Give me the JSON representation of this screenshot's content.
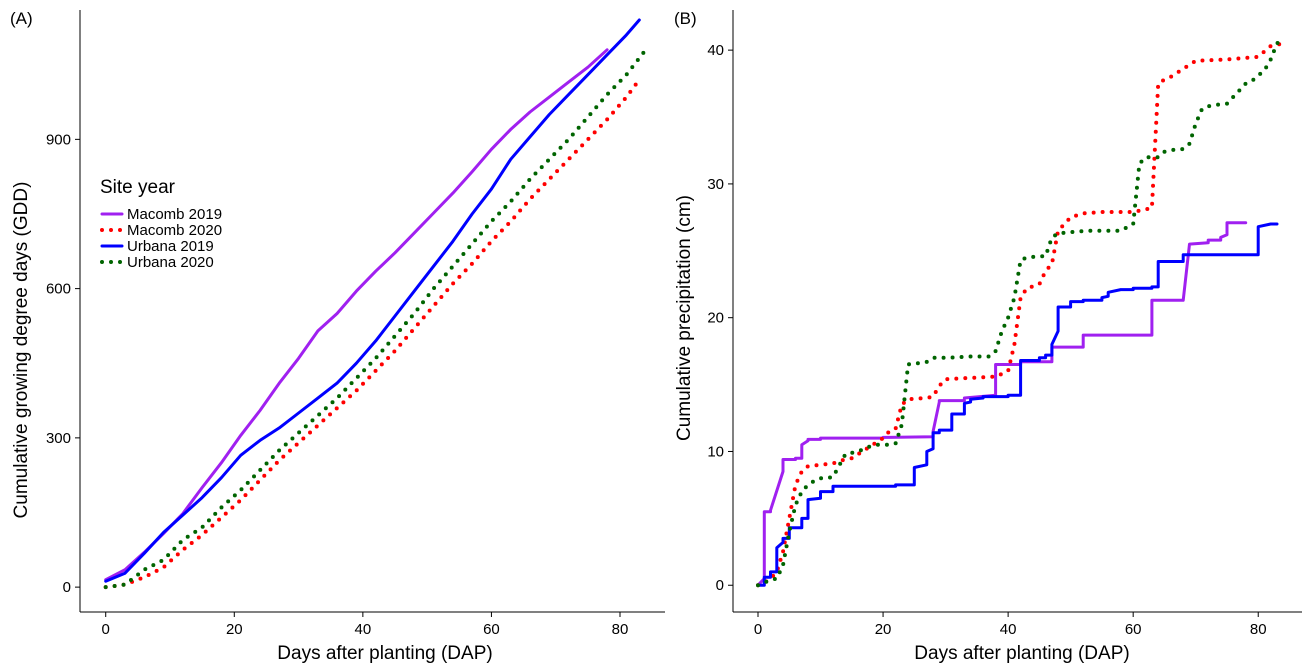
{
  "chart_data": [
    {
      "type": "line",
      "panel_label": "(A)",
      "xlabel": "Days after planting (DAP)",
      "ylabel": "Cumulative growing degree days (GDD)",
      "xlim": [
        -4,
        87
      ],
      "ylim": [
        -50,
        1160
      ],
      "xticks": [
        0,
        20,
        40,
        60,
        80
      ],
      "yticks": [
        0,
        300,
        600,
        900
      ],
      "grid": false,
      "legend": {
        "title": "Site year",
        "position": "top-left",
        "entries": [
          "Macomb 2019",
          "Macomb 2020",
          "Urbana 2019",
          "Urbana 2020"
        ]
      },
      "series": [
        {
          "name": "Macomb 2019",
          "color": "#a020f0",
          "style": "solid",
          "x": [
            0,
            3,
            6,
            9,
            12,
            15,
            18,
            21,
            24,
            27,
            30,
            33,
            36,
            39,
            42,
            45,
            48,
            51,
            54,
            57,
            60,
            63,
            66,
            69,
            72,
            75,
            78
          ],
          "y": [
            15,
            35,
            70,
            108,
            148,
            200,
            250,
            305,
            355,
            410,
            460,
            515,
            550,
            595,
            635,
            672,
            712,
            752,
            792,
            835,
            880,
            920,
            955,
            985,
            1015,
            1045,
            1080
          ]
        },
        {
          "name": "Macomb 2020",
          "color": "#ff0000",
          "style": "dotted",
          "x": [
            0,
            3,
            6,
            9,
            12,
            15,
            18,
            21,
            24,
            27,
            30,
            33,
            36,
            39,
            42,
            45,
            48,
            51,
            54,
            57,
            60,
            63,
            66,
            69,
            72,
            75,
            78,
            81,
            83
          ],
          "y": [
            0,
            5,
            20,
            40,
            75,
            105,
            140,
            175,
            215,
            255,
            290,
            325,
            360,
            395,
            435,
            475,
            520,
            565,
            610,
            650,
            695,
            735,
            780,
            820,
            860,
            900,
            940,
            985,
            1020
          ]
        },
        {
          "name": "Urbana 2019",
          "color": "#0000ff",
          "style": "solid",
          "x": [
            0,
            3,
            6,
            9,
            12,
            15,
            18,
            21,
            24,
            27,
            30,
            33,
            36,
            39,
            42,
            45,
            48,
            51,
            54,
            57,
            60,
            63,
            66,
            69,
            72,
            75,
            78,
            81,
            83
          ],
          "y": [
            12,
            28,
            68,
            110,
            145,
            180,
            220,
            265,
            295,
            320,
            350,
            380,
            410,
            450,
            495,
            545,
            595,
            645,
            695,
            750,
            800,
            860,
            905,
            950,
            990,
            1030,
            1070,
            1110,
            1140
          ]
        },
        {
          "name": "Urbana 2020",
          "color": "#006400",
          "style": "dotted",
          "x": [
            0,
            3,
            6,
            9,
            12,
            15,
            18,
            21,
            24,
            27,
            30,
            33,
            36,
            39,
            42,
            45,
            48,
            51,
            54,
            57,
            60,
            63,
            66,
            69,
            72,
            75,
            78,
            81,
            84
          ],
          "y": [
            0,
            5,
            35,
            55,
            95,
            120,
            160,
            195,
            235,
            275,
            310,
            345,
            380,
            420,
            460,
            505,
            550,
            600,
            645,
            690,
            735,
            775,
            820,
            860,
            900,
            945,
            990,
            1030,
            1080
          ]
        }
      ]
    },
    {
      "type": "line",
      "panel_label": "(B)",
      "xlabel": "Days after planting (DAP)",
      "ylabel": "Cumulative precipitation (cm)",
      "xlim": [
        -4,
        87
      ],
      "ylim": [
        -2,
        43
      ],
      "xticks": [
        0,
        20,
        40,
        60,
        80
      ],
      "yticks": [
        0,
        10,
        20,
        30,
        40
      ],
      "grid": false,
      "series": [
        {
          "name": "Macomb 2019",
          "color": "#a020f0",
          "style": "solid",
          "x": [
            0,
            1,
            1,
            2,
            2,
            4,
            4,
            6,
            6,
            7,
            7,
            8,
            8,
            10,
            10,
            20,
            20,
            28,
            28,
            29,
            29,
            33,
            33,
            38,
            38,
            42,
            42,
            47,
            47,
            52,
            52,
            60,
            60,
            63,
            63,
            68,
            68,
            69,
            69,
            72,
            72,
            74,
            74,
            75,
            75,
            78
          ],
          "y": [
            0,
            0.5,
            5.5,
            5.5,
            5.6,
            8.5,
            9.4,
            9.4,
            9.5,
            9.5,
            10.5,
            10.8,
            10.9,
            10.9,
            11,
            11,
            11.05,
            11.1,
            11.5,
            13.7,
            13.8,
            13.8,
            14,
            14.2,
            16.5,
            16.5,
            16.7,
            16.7,
            17.8,
            17.8,
            18.7,
            18.7,
            18.7,
            18.7,
            21.3,
            21.3,
            21.3,
            25.5,
            25.5,
            25.6,
            25.8,
            25.8,
            26,
            26.2,
            27.1,
            27.1
          ]
        },
        {
          "name": "Macomb 2020",
          "color": "#ff0000",
          "style": "dotted",
          "x": [
            0,
            1,
            2,
            3,
            4,
            5,
            6,
            7,
            8,
            10,
            12,
            13,
            15,
            20,
            21,
            22,
            23,
            24,
            27,
            28,
            29,
            30,
            34,
            38,
            40,
            41,
            42,
            43,
            45,
            46,
            47,
            48,
            49,
            50,
            52,
            55,
            60,
            63,
            64,
            65,
            66,
            70,
            75,
            80,
            82,
            84
          ],
          "y": [
            0,
            0.2,
            0.5,
            1,
            2.5,
            5,
            7.5,
            8.5,
            8.9,
            9,
            9.1,
            9.3,
            9.5,
            11,
            11.5,
            11.7,
            13.5,
            13.9,
            14,
            14.1,
            14.9,
            15.4,
            15.5,
            15.6,
            16,
            18,
            21.5,
            22.2,
            22.5,
            23.5,
            24,
            26.5,
            27,
            27.5,
            27.8,
            27.9,
            27.9,
            28.2,
            37.5,
            37.8,
            38,
            39.2,
            39.3,
            39.5,
            40.3,
            40.5
          ]
        },
        {
          "name": "Urbana 2019",
          "color": "#0000ff",
          "style": "solid",
          "x": [
            0,
            1,
            1,
            2,
            2,
            3,
            3,
            4,
            4,
            5,
            5,
            6,
            6,
            7,
            7,
            8,
            8,
            10,
            10,
            12,
            12,
            18,
            18,
            22,
            22,
            25,
            25,
            27,
            27,
            28,
            28,
            29,
            29,
            31,
            31,
            33,
            33,
            34,
            34,
            36,
            36,
            40,
            40,
            42,
            42,
            45,
            45,
            46,
            46,
            47,
            47,
            48,
            48,
            50,
            50,
            52,
            52,
            55,
            55,
            56,
            56,
            58,
            58,
            60,
            60,
            63,
            63,
            64,
            64,
            65,
            65,
            66,
            66,
            68,
            68,
            70,
            70,
            72,
            72,
            80,
            80,
            82,
            82,
            83
          ],
          "y": [
            0,
            0,
            0.6,
            0.6,
            1,
            1,
            2.8,
            3.2,
            3.5,
            3.5,
            4.3,
            4.3,
            4.3,
            4.3,
            5,
            5,
            6.4,
            6.5,
            7,
            7,
            7.4,
            7.4,
            7.4,
            7.4,
            7.5,
            7.5,
            8.8,
            9,
            10,
            10.2,
            11.4,
            11.4,
            11.6,
            11.6,
            12.8,
            12.8,
            13.6,
            13.7,
            13.9,
            14,
            14.1,
            14.1,
            14.2,
            14.2,
            16.8,
            16.8,
            17,
            17,
            17.2,
            17.2,
            18,
            19,
            20.8,
            20.8,
            21.2,
            21.2,
            21.3,
            21.3,
            21.5,
            21.6,
            21.9,
            22.1,
            22.1,
            22.1,
            22.2,
            22.2,
            22.3,
            22.3,
            24.2,
            24.2,
            24.2,
            24.2,
            24.2,
            24.2,
            24.7,
            24.7,
            24.7,
            24.7,
            24.7,
            24.7,
            26.8,
            27,
            27,
            27
          ]
        },
        {
          "name": "Urbana 2020",
          "color": "#006400",
          "style": "dotted",
          "x": [
            0,
            1,
            2,
            3,
            4,
            5,
            6,
            7,
            8,
            9,
            10,
            11,
            12,
            14,
            16,
            17,
            18,
            19,
            20,
            21,
            22,
            23,
            24,
            25,
            26,
            27,
            28,
            30,
            34,
            37,
            38,
            39,
            40,
            41,
            42,
            43,
            45,
            46,
            47,
            48,
            50,
            53,
            58,
            60,
            61,
            62,
            63,
            64,
            65,
            66,
            67,
            68,
            69,
            70,
            71,
            72,
            73,
            75,
            77,
            78,
            79,
            80,
            81,
            82,
            83,
            84
          ],
          "y": [
            0,
            0.2,
            0.4,
            0.5,
            1.5,
            4,
            6,
            7,
            7.5,
            7.8,
            8,
            8,
            8.1,
            9.8,
            10,
            10.2,
            10.4,
            10.5,
            10.5,
            10.5,
            10.6,
            12,
            16.5,
            16.6,
            16.6,
            16.7,
            17,
            17,
            17.1,
            17.1,
            17.5,
            19,
            20,
            21.5,
            24.3,
            24.5,
            24.6,
            24.6,
            26,
            26.3,
            26.4,
            26.5,
            26.5,
            27,
            31.5,
            32,
            32,
            32,
            32.4,
            32.5,
            32.6,
            32.6,
            33,
            34.5,
            35.6,
            35.8,
            35.9,
            36,
            37,
            37.5,
            37.7,
            38.1,
            38.5,
            39.3,
            40.5,
            40.8
          ]
        }
      ]
    }
  ]
}
